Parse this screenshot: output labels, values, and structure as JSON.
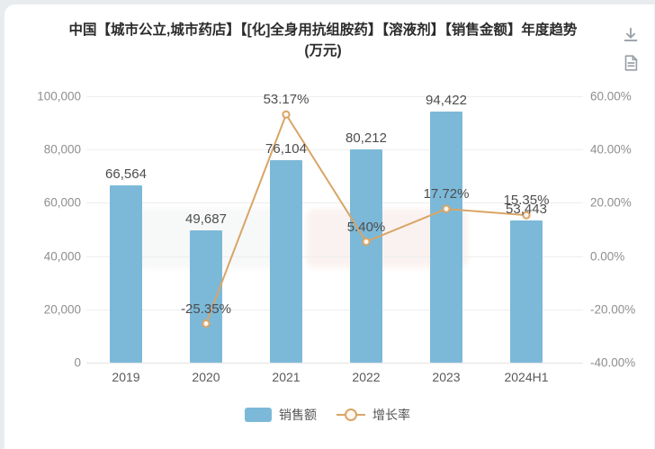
{
  "header": {
    "title_line1": "中国【城市公立,城市药店】【[化]全身用抗组胺药】【溶液剂】【销售金额】年度趋势",
    "title_line2": "(万元)"
  },
  "toolbar": {
    "icons": [
      "download-icon",
      "report-icon"
    ]
  },
  "colors": {
    "bar": "#7cb9d9",
    "line": "#d9a567",
    "marker_fill": "#fdf7ef",
    "title_text": "#2b2b2b",
    "data_label": "#4d4d4d",
    "axis_text": "#8f8f8f",
    "grid": "#eeeeee",
    "watermark_gray": "#b9bec4",
    "watermark_red": "#d98a7a"
  },
  "chart_data": {
    "type": "bar",
    "categories": [
      "2019",
      "2020",
      "2021",
      "2022",
      "2023",
      "2024H1"
    ],
    "series": [
      {
        "name": "销售额",
        "type": "bar",
        "axis": "left",
        "values": [
          66564,
          49687,
          76104,
          80212,
          94422,
          53443
        ],
        "labels": [
          "66,564",
          "49,687",
          "76,104",
          "80,212",
          "94,422",
          "53,443"
        ]
      },
      {
        "name": "增长率",
        "type": "line",
        "axis": "right",
        "values": [
          null,
          -25.35,
          53.17,
          5.4,
          17.72,
          15.35
        ],
        "labels": [
          null,
          "-25.35%",
          "53.17%",
          "5.40%",
          "17.72%",
          "15.35%"
        ]
      }
    ],
    "left_axis": {
      "min": 0,
      "max": 100000,
      "ticks": [
        "100,000",
        "80,000",
        "60,000",
        "40,000",
        "20,000",
        "0"
      ]
    },
    "right_axis": {
      "min": -40,
      "max": 60,
      "ticks": [
        "60.00%",
        "40.00%",
        "20.00%",
        "0.00%",
        "-20.00%",
        "-40.00%"
      ]
    },
    "grid": true,
    "legend_position": "bottom",
    "legend": [
      {
        "label": "销售额",
        "marker": "bar-swatch"
      },
      {
        "label": "增长率",
        "marker": "line-circle"
      }
    ]
  }
}
